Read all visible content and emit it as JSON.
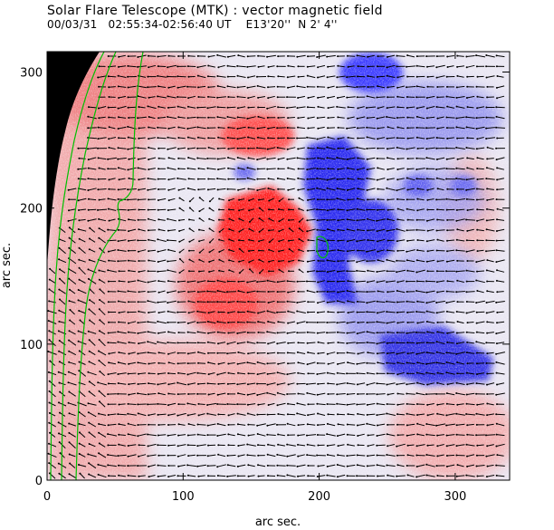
{
  "header": {
    "title": "Solar Flare Telescope (MTK) : vector magnetic field",
    "subtitle": "00/03/31   02:55:34-02:56:40 UT    E13'20''  N 2' 4''"
  },
  "axes": {
    "xlabel": "arc sec.",
    "ylabel": "arc sec.",
    "xticks": [
      "0",
      "100",
      "200",
      "300"
    ],
    "yticks": [
      "0",
      "100",
      "200",
      "300"
    ],
    "xlim": [
      0,
      340
    ],
    "ylim": [
      0,
      315
    ]
  },
  "colors": {
    "positive_polarity": "#ff3030",
    "negative_polarity": "#2020e0",
    "neutral": "#e8e8f4",
    "off_disk": "#000000",
    "contour": "#00c800",
    "vectors": "#000000"
  }
}
